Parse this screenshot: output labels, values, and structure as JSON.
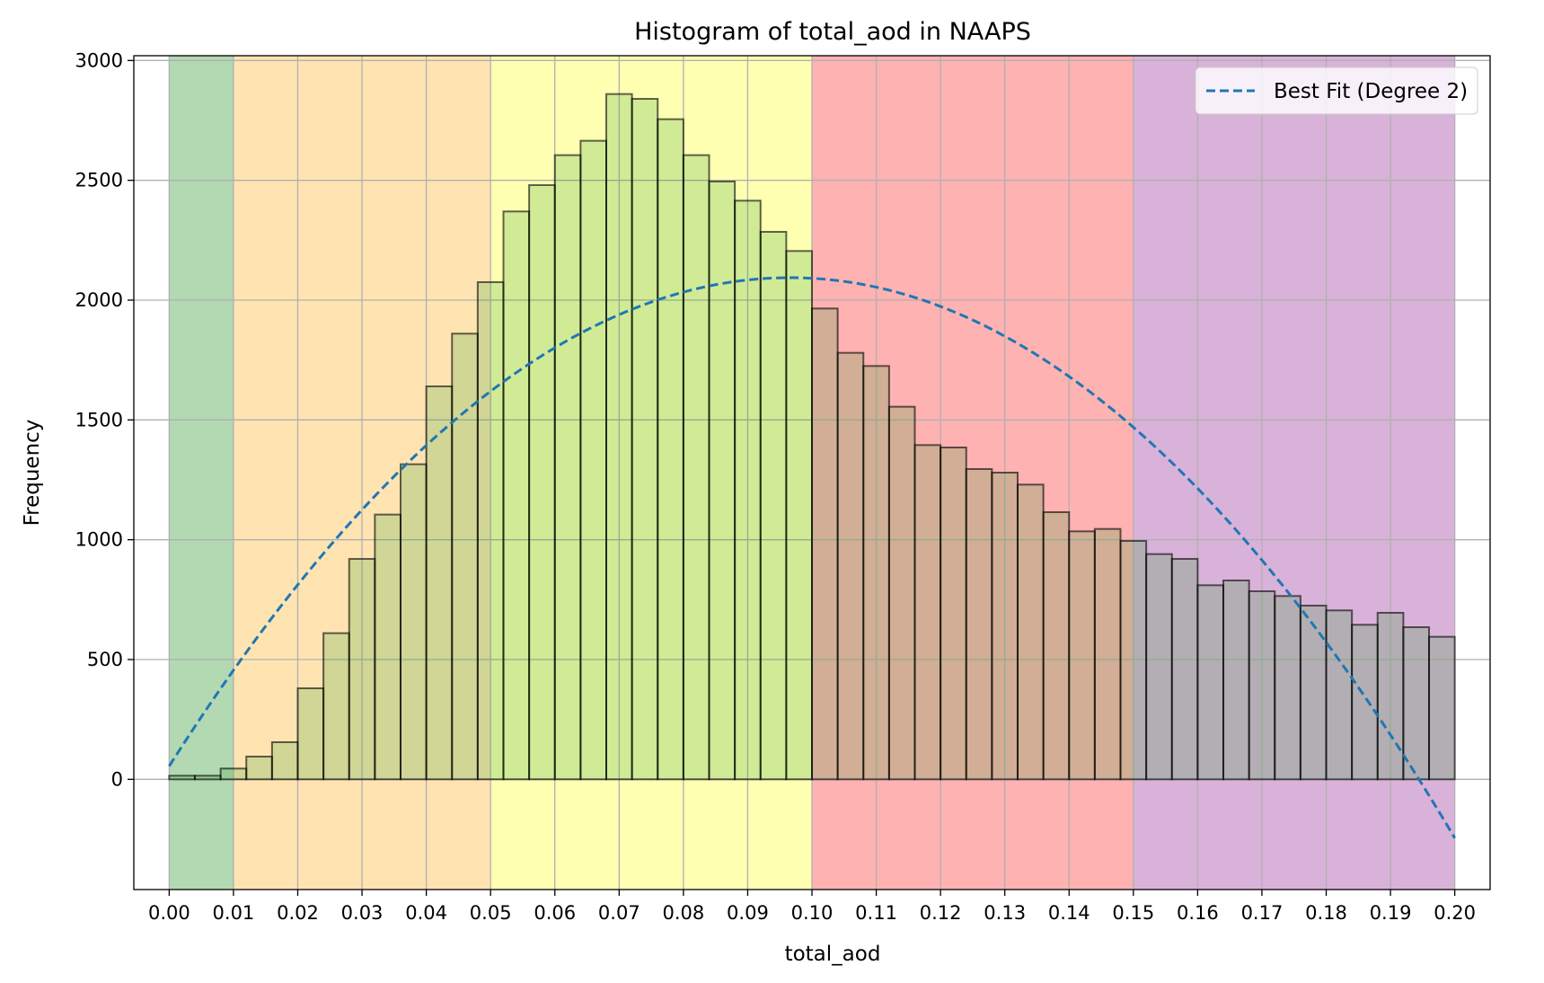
{
  "chart_data": {
    "type": "bar",
    "title": "Histogram of total_aod in NAAPS",
    "xlabel": "total_aod",
    "ylabel": "Frequency",
    "xlim": [
      -0.0055,
      0.2055
    ],
    "ylim": [
      -460,
      3020
    ],
    "x_ticks": [
      "0.00",
      "0.01",
      "0.02",
      "0.03",
      "0.04",
      "0.05",
      "0.06",
      "0.07",
      "0.08",
      "0.09",
      "0.10",
      "0.11",
      "0.12",
      "0.13",
      "0.14",
      "0.15",
      "0.16",
      "0.17",
      "0.18",
      "0.19",
      "0.20"
    ],
    "y_ticks": [
      "0",
      "500",
      "1000",
      "1500",
      "2000",
      "2500",
      "3000"
    ],
    "grid": true,
    "bin_width": 0.004,
    "bin_start": 0.0,
    "histogram_color": "#2ca02c",
    "bar_edge_color": "#000000",
    "values": [
      15,
      15,
      45,
      95,
      155,
      380,
      610,
      920,
      1105,
      1315,
      1640,
      1860,
      2075,
      2370,
      2480,
      2605,
      2665,
      2860,
      2840,
      2755,
      2605,
      2495,
      2415,
      2285,
      2205,
      1965,
      1780,
      1725,
      1555,
      1395,
      1385,
      1295,
      1280,
      1230,
      1115,
      1035,
      1045,
      995,
      940,
      920,
      810,
      830,
      785,
      765,
      725,
      705,
      645,
      695,
      635,
      595
    ],
    "bands": [
      {
        "from": 0.0,
        "to": 0.01,
        "color": "#008000"
      },
      {
        "from": 0.01,
        "to": 0.05,
        "color": "#ffa500"
      },
      {
        "from": 0.05,
        "to": 0.1,
        "color": "#ffff00"
      },
      {
        "from": 0.1,
        "to": 0.15,
        "color": "#ff0000"
      },
      {
        "from": 0.15,
        "to": 0.2,
        "color": "#800080"
      }
    ],
    "fit": {
      "name": "Best Fit (Degree 2)",
      "degree": 2,
      "color": "#1f77b4",
      "style": "dashed",
      "x_range": [
        0.0,
        0.2
      ],
      "coefficients": [
        55,
        42220,
        -218600
      ]
    },
    "legend_position": "top-right"
  }
}
